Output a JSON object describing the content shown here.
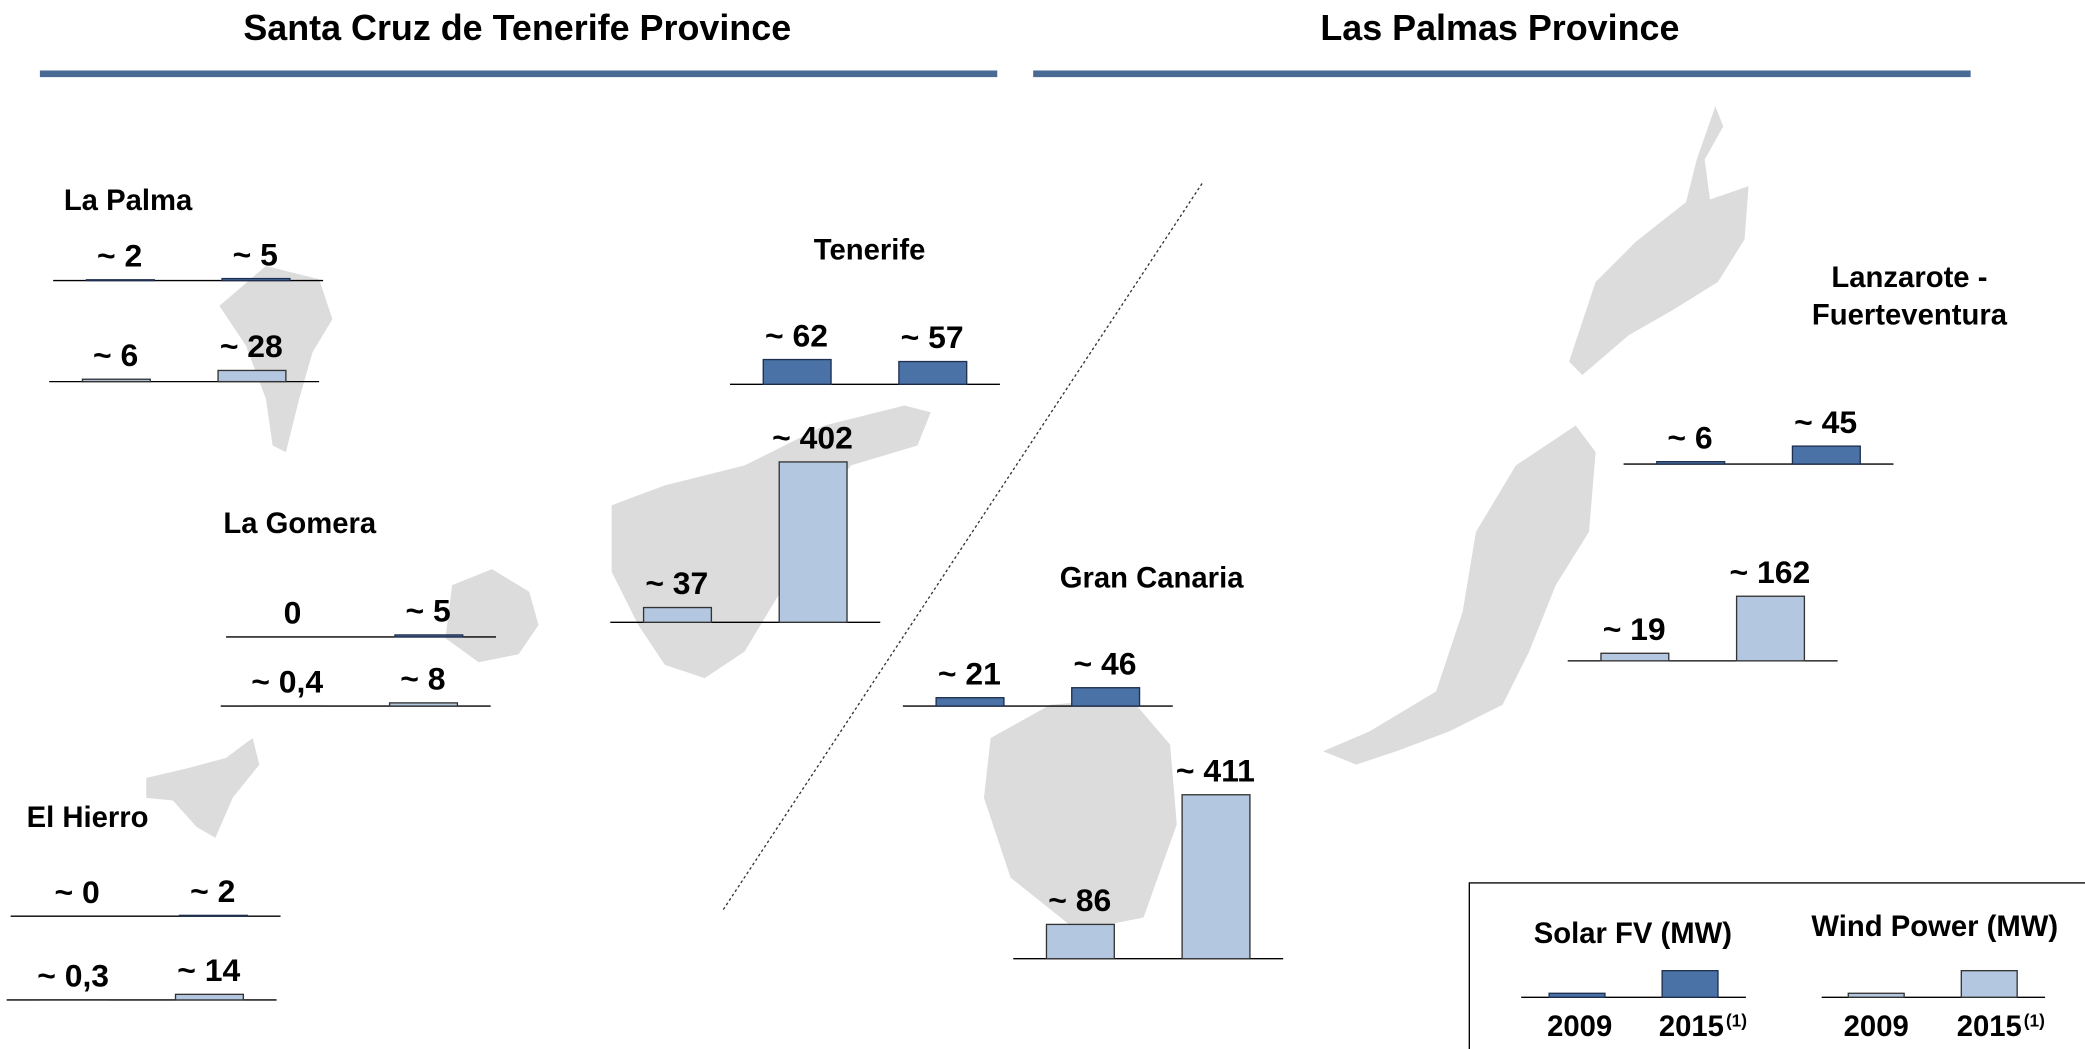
{
  "provinces": [
    "Santa Cruz de Tenerife Province",
    "Las Palmas Province"
  ],
  "colors": {
    "solar": "#4a72a6",
    "wind": "#b4c7e0"
  },
  "islands": [
    {
      "name": "La Palma",
      "solar": {
        "values": [
          2,
          5
        ],
        "value_labels": [
          "~ 2",
          "~ 5"
        ]
      },
      "wind": {
        "values": [
          6,
          28
        ],
        "value_labels": [
          "~ 6",
          "~ 28"
        ]
      }
    },
    {
      "name": "La Gomera",
      "solar": {
        "values": [
          0,
          5
        ],
        "value_labels": [
          "0",
          "~ 5"
        ]
      },
      "wind": {
        "values": [
          0.4,
          8
        ],
        "value_labels": [
          "~ 0,4",
          "~ 8"
        ]
      }
    },
    {
      "name": "El Hierro",
      "solar": {
        "values": [
          0,
          2
        ],
        "value_labels": [
          "~ 0",
          "~ 2"
        ]
      },
      "wind": {
        "values": [
          0.3,
          14
        ],
        "value_labels": [
          "~ 0,3",
          "~ 14"
        ]
      }
    },
    {
      "name": "Tenerife",
      "solar": {
        "values": [
          62,
          57
        ],
        "value_labels": [
          "~ 62",
          "~ 57"
        ]
      },
      "wind": {
        "values": [
          37,
          402
        ],
        "value_labels": [
          "~ 37",
          "~ 402"
        ]
      }
    },
    {
      "name": "Gran Canaria",
      "solar": {
        "values": [
          21,
          46
        ],
        "value_labels": [
          "~ 21",
          "~ 46"
        ]
      },
      "wind": {
        "values": [
          86,
          411
        ],
        "value_labels": [
          "~ 86",
          "~ 411"
        ]
      }
    },
    {
      "name": "Lanzarote - Fuerteventura",
      "solar": {
        "values": [
          6,
          45
        ],
        "value_labels": [
          "~ 6",
          "~ 45"
        ]
      },
      "wind": {
        "values": [
          19,
          162
        ],
        "value_labels": [
          "~ 19",
          "~ 162"
        ]
      }
    }
  ],
  "legend": {
    "solar_title": "Solar FV (MW)",
    "wind_title": "Wind Power (MW)",
    "years": [
      "2009",
      "2015"
    ],
    "note": "(1)"
  }
}
